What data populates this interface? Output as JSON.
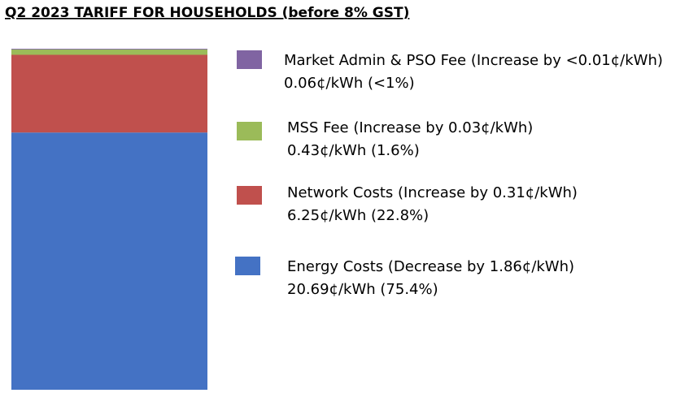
{
  "chart_data": {
    "type": "stacked_bar",
    "title": "Q2 2023 TARIFF FOR HOUSEHOLDS (before 8% GST)",
    "series": [
      {
        "name": "Energy Costs (Decrease by 1.86¢/kWh)",
        "color": "#4472c4",
        "values": [
          20.69
        ],
        "value_labels": [
          "20.69¢/kWh (75.4%)"
        ]
      },
      {
        "name": "Network Costs (Increase by 0.31¢/kWh)",
        "color": "#c0504d",
        "values": [
          6.25
        ],
        "value_labels": [
          "6.25¢/kWh (22.8%)"
        ]
      },
      {
        "name": "MSS Fee (Increase by 0.03¢/kWh)",
        "color": "#9bbb59",
        "values": [
          0.43
        ],
        "value_labels": [
          "0.43¢/kWh (1.6%)"
        ]
      },
      {
        "name": "Market Admin & PSO Fee (Increase by <0.01¢/kWh)",
        "color": "#8064a2",
        "values": [
          0.06
        ],
        "value_labels": [
          "0.06¢/kWh (<1%)"
        ]
      }
    ]
  }
}
